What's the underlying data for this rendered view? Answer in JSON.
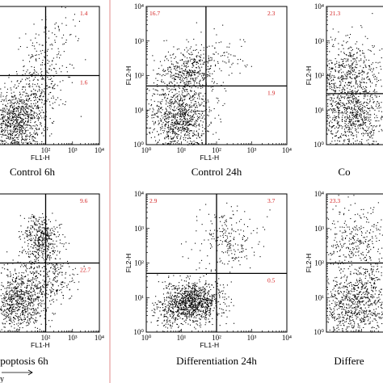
{
  "chart_data": [
    {
      "type": "scatter",
      "caption": "Control 6h",
      "xlabel": "FL1-H",
      "ylabel": "",
      "xscale": "log",
      "yscale": "log",
      "xlim": [
        1,
        10000
      ],
      "ylim": [
        1,
        10000
      ],
      "x_tick_labels": [
        "10²",
        "10³",
        "10⁴"
      ],
      "y_tick_labels": [],
      "gate": {
        "x": 100,
        "y": 100
      },
      "quadrants": {
        "ul": "",
        "ur": "1.4",
        "lr": "1.6"
      },
      "clusters": [
        {
          "x": 8,
          "y": 5,
          "sx": 0.5,
          "sy": 0.45,
          "n": 900
        },
        {
          "x": 60,
          "y": 60,
          "sx": 0.45,
          "sy": 0.55,
          "n": 260
        },
        {
          "x": 200,
          "y": 1000,
          "sx": 0.55,
          "sy": 0.5,
          "n": 90
        }
      ]
    },
    {
      "type": "scatter",
      "caption": "Control 24h",
      "xlabel": "FL1-H",
      "ylabel": "FL2-H",
      "xscale": "log",
      "yscale": "log",
      "xlim": [
        1,
        10000
      ],
      "ylim": [
        1,
        10000
      ],
      "x_tick_labels": [
        "10⁰",
        "10¹",
        "10²",
        "10³",
        "10⁴"
      ],
      "y_tick_labels": [
        "10⁰",
        "10¹",
        "10²",
        "10³",
        "10⁴"
      ],
      "gate": {
        "x": 50,
        "y": 50
      },
      "quadrants": {
        "ul": "16.7",
        "ur": "2.3",
        "lr": "1.9"
      },
      "clusters": [
        {
          "x": 8,
          "y": 6,
          "sx": 0.45,
          "sy": 0.45,
          "n": 900
        },
        {
          "x": 15,
          "y": 120,
          "sx": 0.45,
          "sy": 0.35,
          "n": 450
        },
        {
          "x": 70,
          "y": 400,
          "sx": 0.5,
          "sy": 0.4,
          "n": 80
        }
      ]
    },
    {
      "type": "scatter",
      "caption": "Co",
      "xlabel": "",
      "ylabel": "FL2-H",
      "xscale": "log",
      "yscale": "log",
      "xlim": [
        1,
        10000
      ],
      "ylim": [
        1,
        10000
      ],
      "x_tick_labels": [
        "10⁰"
      ],
      "y_tick_labels": [
        "10⁰",
        "10¹",
        "10²",
        "10³",
        "10⁴"
      ],
      "gate": {
        "x": 100,
        "y": 30
      },
      "quadrants": {
        "ul": "21.3",
        "ur": "",
        "lr": ""
      },
      "clusters": [
        {
          "x": 5,
          "y": 8,
          "sx": 0.55,
          "sy": 0.6,
          "n": 900
        },
        {
          "x": 4,
          "y": 150,
          "sx": 0.5,
          "sy": 0.5,
          "n": 450
        }
      ]
    },
    {
      "type": "scatter",
      "caption": "poptosis 6h",
      "xlabel": "FL1-H",
      "ylabel": "",
      "xscale": "log",
      "yscale": "log",
      "xlim": [
        1,
        10000
      ],
      "ylim": [
        1,
        10000
      ],
      "x_tick_labels": [
        "10²",
        "10³",
        "10⁴"
      ],
      "y_tick_labels": [],
      "gate": {
        "x": 100,
        "y": 100
      },
      "quadrants": {
        "ul": "",
        "ur": "9.6",
        "lr": "22.7"
      },
      "clusters": [
        {
          "x": 10,
          "y": 8,
          "sx": 0.5,
          "sy": 0.45,
          "n": 800
        },
        {
          "x": 60,
          "y": 500,
          "sx": 0.35,
          "sy": 0.35,
          "n": 420
        },
        {
          "x": 150,
          "y": 40,
          "sx": 0.5,
          "sy": 0.4,
          "n": 250
        }
      ]
    },
    {
      "type": "scatter",
      "caption": "Differentiation 24h",
      "xlabel": "FL1-H",
      "ylabel": "FL2-H",
      "xscale": "log",
      "yscale": "log",
      "xlim": [
        1,
        10000
      ],
      "ylim": [
        1,
        10000
      ],
      "x_tick_labels": [
        "10⁰",
        "10¹",
        "10²",
        "10³",
        "10⁴"
      ],
      "y_tick_labels": [
        "10⁰",
        "10¹",
        "10²",
        "10³",
        "10⁴"
      ],
      "gate": {
        "x": 100,
        "y": 50
      },
      "quadrants": {
        "ul": "2.9",
        "ur": "3.7",
        "lr": "0.5"
      },
      "clusters": [
        {
          "x": 20,
          "y": 8,
          "sx": 0.4,
          "sy": 0.3,
          "n": 1000
        },
        {
          "x": 200,
          "y": 500,
          "sx": 0.45,
          "sy": 0.45,
          "n": 220
        },
        {
          "x": 5,
          "y": 3,
          "sx": 0.3,
          "sy": 0.25,
          "n": 150
        }
      ]
    },
    {
      "type": "scatter",
      "caption": "Differe",
      "xlabel": "",
      "ylabel": "FL2-H",
      "xscale": "log",
      "yscale": "log",
      "xlim": [
        1,
        10000
      ],
      "ylim": [
        1,
        10000
      ],
      "x_tick_labels": [],
      "y_tick_labels": [
        "10⁰",
        "10¹",
        "10²",
        "10³",
        "10⁴"
      ],
      "gate": {
        "x": 100,
        "y": 100
      },
      "quadrants": {
        "ul": "23.3",
        "ur": "",
        "lr": ""
      },
      "clusters": [
        {
          "x": 6,
          "y": 8,
          "sx": 0.55,
          "sy": 0.55,
          "n": 900
        },
        {
          "x": 8,
          "y": 400,
          "sx": 0.55,
          "sy": 0.5,
          "n": 350
        }
      ]
    }
  ],
  "bottom_fragment": "y"
}
